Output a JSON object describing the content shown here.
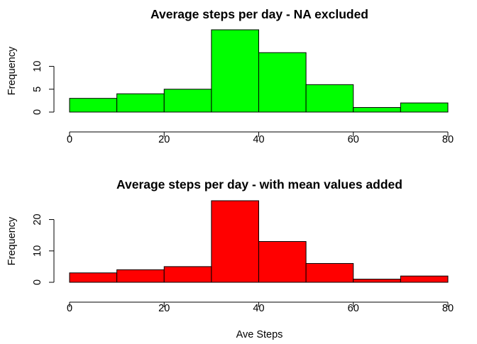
{
  "chart_data": [
    {
      "type": "bar",
      "title": "Average steps per day - NA excluded",
      "xlabel": "",
      "ylabel": "Frequency",
      "bin_edges": [
        0,
        10,
        20,
        30,
        40,
        50,
        60,
        70,
        80
      ],
      "values": [
        3,
        4,
        5,
        18,
        13,
        6,
        1,
        2
      ],
      "xlim": [
        0,
        80
      ],
      "ylim": [
        0,
        18
      ],
      "xticks": [
        0,
        20,
        40,
        60,
        80
      ],
      "yticks": [
        0,
        5,
        10
      ],
      "bar_color": "#00ff00",
      "grid": false
    },
    {
      "type": "bar",
      "title": "Average steps per day - with mean values added",
      "xlabel": "Ave Steps",
      "ylabel": "Frequency",
      "bin_edges": [
        0,
        10,
        20,
        30,
        40,
        50,
        60,
        70,
        80
      ],
      "values": [
        3,
        4,
        5,
        26,
        13,
        6,
        1,
        2
      ],
      "xlim": [
        0,
        80
      ],
      "ylim": [
        0,
        26
      ],
      "xticks": [
        0,
        20,
        40,
        60,
        80
      ],
      "yticks": [
        0,
        10,
        20
      ],
      "bar_color": "#ff0000",
      "grid": false
    }
  ]
}
